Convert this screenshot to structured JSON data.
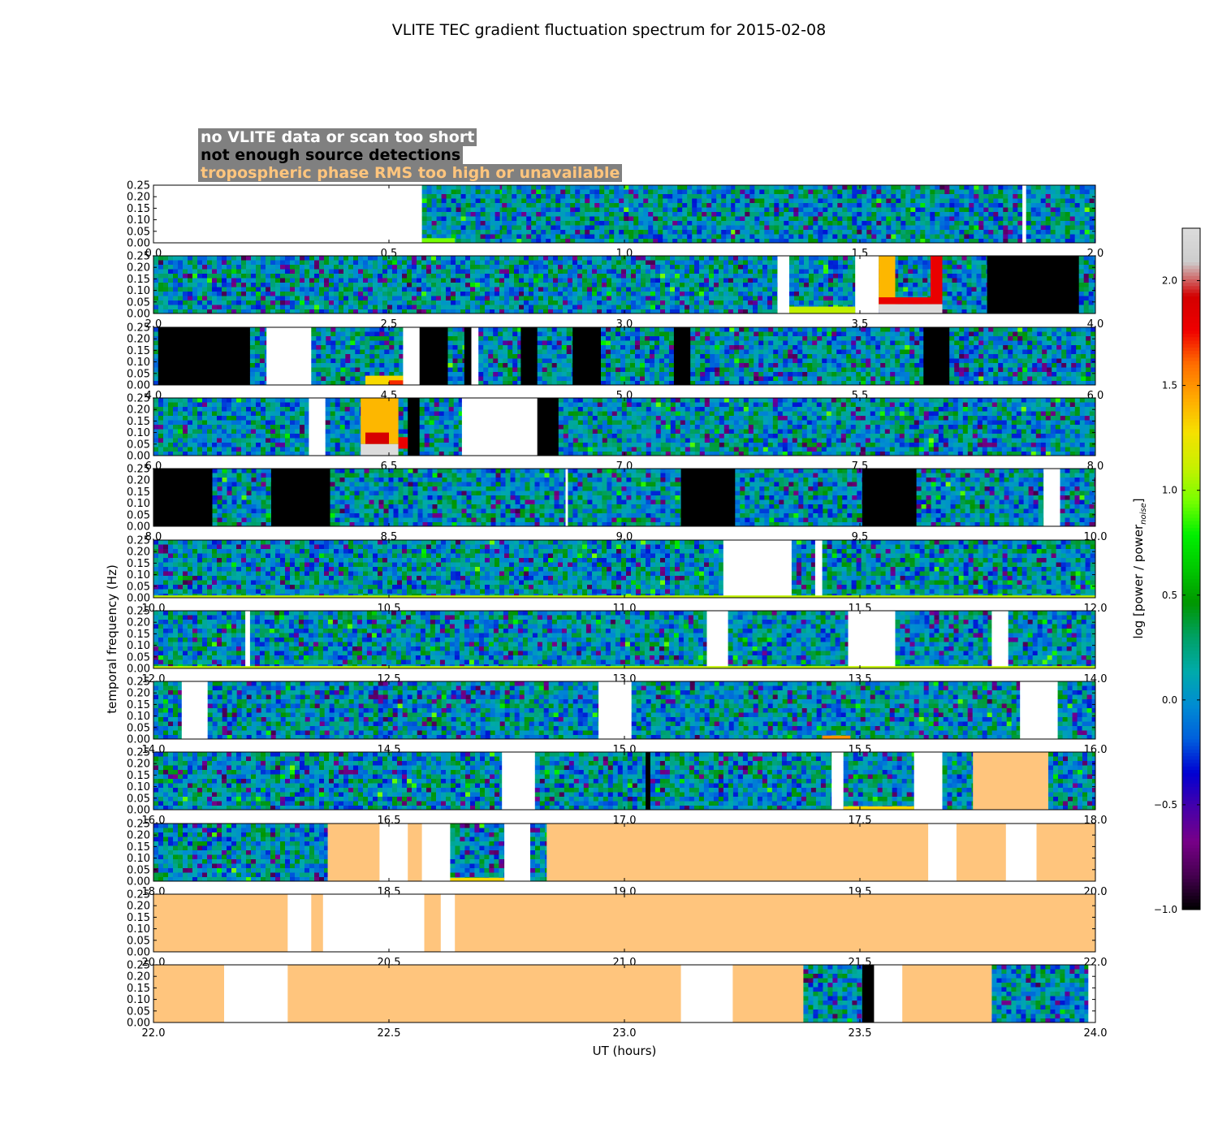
{
  "chart_data": {
    "type": "heatmap",
    "title": "VLITE TEC gradient fluctuation spectrum for 2015-02-08",
    "xlabel": "UT (hours)",
    "ylabel": "temporal frequency (Hz)",
    "ylim": [
      0,
      0.25
    ],
    "yticks": [
      "0.00",
      "0.05",
      "0.10",
      "0.15",
      "0.20",
      "0.25"
    ],
    "colorbar": {
      "label": "log [power / power",
      "label_subscript": "noise",
      "label_close": "]",
      "range": [
        -1.0,
        2.25
      ],
      "ticks": [
        "−1.0",
        "−0.5",
        "0.0",
        "0.5",
        "1.0",
        "1.5",
        "2.0"
      ],
      "tick_values": [
        -1.0,
        -0.5,
        0.0,
        0.5,
        1.0,
        1.5,
        2.0
      ],
      "colormap": "nipy_spectral"
    },
    "legend": {
      "placement": "top-left",
      "entries": [
        {
          "label": "no VLITE data or scan too short",
          "color": "#ffffff"
        },
        {
          "label": "not enough source detections",
          "color": "#000000"
        },
        {
          "label": "tropospheric phase RMS too high or unavailable",
          "color": "#ffc57d"
        }
      ]
    },
    "panels": [
      {
        "range": [
          0,
          2
        ],
        "ticks": [
          "0.0",
          "0.5",
          "1.0",
          "1.5",
          "2.0"
        ],
        "segments": [
          [
            0,
            0.57,
            "nodata"
          ],
          [
            0.57,
            0.74,
            "data"
          ],
          [
            0.74,
            1.235,
            "data"
          ],
          [
            1.235,
            1.845,
            "data"
          ],
          [
            1.845,
            1.853,
            "nodata"
          ],
          [
            1.853,
            2.0,
            "data"
          ]
        ]
      },
      {
        "range": [
          2,
          4
        ],
        "ticks": [
          "2.0",
          "2.5",
          "3.0",
          "3.5",
          "4.0"
        ],
        "segments": [
          [
            2.0,
            3.325,
            "data"
          ],
          [
            3.325,
            3.35,
            "nodata"
          ],
          [
            3.35,
            3.49,
            "data"
          ],
          [
            3.49,
            3.54,
            "nodata"
          ],
          [
            3.54,
            3.675,
            "data"
          ],
          [
            3.675,
            3.77,
            "data"
          ],
          [
            3.77,
            3.965,
            "nodet"
          ],
          [
            3.965,
            4.0,
            "data"
          ]
        ]
      },
      {
        "range": [
          4,
          6
        ],
        "ticks": [
          "4.0",
          "4.5",
          "5.0",
          "5.5",
          "6.0"
        ],
        "segments": [
          [
            4.0,
            4.01,
            "data"
          ],
          [
            4.01,
            4.205,
            "nodet"
          ],
          [
            4.205,
            4.24,
            "data"
          ],
          [
            4.24,
            4.335,
            "nodata"
          ],
          [
            4.335,
            4.53,
            "data"
          ],
          [
            4.53,
            4.565,
            "nodata"
          ],
          [
            4.565,
            4.625,
            "nodet"
          ],
          [
            4.625,
            4.66,
            "data"
          ],
          [
            4.66,
            4.675,
            "nodet"
          ],
          [
            4.675,
            4.69,
            "nodata"
          ],
          [
            4.69,
            4.78,
            "data"
          ],
          [
            4.78,
            4.815,
            "nodet"
          ],
          [
            4.815,
            4.89,
            "data"
          ],
          [
            4.89,
            4.95,
            "nodet"
          ],
          [
            4.95,
            5.105,
            "data"
          ],
          [
            5.105,
            5.14,
            "nodet"
          ],
          [
            5.14,
            5.635,
            "data"
          ],
          [
            5.635,
            5.69,
            "nodet"
          ],
          [
            5.69,
            6.0,
            "data"
          ]
        ]
      },
      {
        "range": [
          6,
          8
        ],
        "ticks": [
          "6.0",
          "6.5",
          "7.0",
          "7.5",
          "8.0"
        ],
        "segments": [
          [
            6.0,
            6.33,
            "data"
          ],
          [
            6.33,
            6.365,
            "nodata"
          ],
          [
            6.365,
            6.54,
            "data"
          ],
          [
            6.54,
            6.565,
            "nodet"
          ],
          [
            6.565,
            6.655,
            "data"
          ],
          [
            6.655,
            6.815,
            "nodata"
          ],
          [
            6.815,
            6.86,
            "nodet"
          ],
          [
            6.86,
            8.0,
            "data"
          ]
        ]
      },
      {
        "range": [
          8,
          10
        ],
        "ticks": [
          "8.0",
          "8.5",
          "9.0",
          "9.5",
          "10.0"
        ],
        "segments": [
          [
            8.0,
            8.125,
            "nodet"
          ],
          [
            8.125,
            8.25,
            "data"
          ],
          [
            8.25,
            8.375,
            "nodet"
          ],
          [
            8.375,
            8.875,
            "data"
          ],
          [
            8.875,
            8.88,
            "nodata"
          ],
          [
            8.88,
            9.12,
            "data"
          ],
          [
            9.12,
            9.235,
            "nodet"
          ],
          [
            9.235,
            9.505,
            "data"
          ],
          [
            9.505,
            9.62,
            "nodet"
          ],
          [
            9.62,
            9.89,
            "data"
          ],
          [
            9.89,
            9.925,
            "nodata"
          ],
          [
            9.925,
            10.0,
            "data"
          ]
        ]
      },
      {
        "range": [
          10,
          12
        ],
        "ticks": [
          "10.0",
          "10.5",
          "11.0",
          "11.5",
          "12.0"
        ],
        "segments": [
          [
            10.0,
            11.21,
            "data"
          ],
          [
            11.21,
            11.355,
            "nodata"
          ],
          [
            11.355,
            11.405,
            "data"
          ],
          [
            11.405,
            11.42,
            "nodata"
          ],
          [
            11.42,
            12.0,
            "data"
          ]
        ]
      },
      {
        "range": [
          12,
          14
        ],
        "ticks": [
          "12.0",
          "12.5",
          "13.0",
          "13.5",
          "14.0"
        ],
        "segments": [
          [
            12.0,
            12.195,
            "data"
          ],
          [
            12.195,
            12.205,
            "nodata"
          ],
          [
            12.205,
            13.175,
            "data"
          ],
          [
            13.175,
            13.22,
            "nodata"
          ],
          [
            13.22,
            13.475,
            "data"
          ],
          [
            13.475,
            13.575,
            "nodata"
          ],
          [
            13.575,
            13.78,
            "data"
          ],
          [
            13.78,
            13.815,
            "nodata"
          ],
          [
            13.815,
            14.0,
            "data"
          ]
        ]
      },
      {
        "range": [
          14,
          16
        ],
        "ticks": [
          "14.0",
          "14.5",
          "15.0",
          "15.5",
          "16.0"
        ],
        "segments": [
          [
            14.0,
            14.06,
            "data"
          ],
          [
            14.06,
            14.115,
            "nodata"
          ],
          [
            14.115,
            14.945,
            "data"
          ],
          [
            14.945,
            15.015,
            "nodata"
          ],
          [
            15.015,
            15.84,
            "data"
          ],
          [
            15.84,
            15.92,
            "nodata"
          ],
          [
            15.92,
            16.0,
            "data"
          ]
        ]
      },
      {
        "range": [
          16,
          18
        ],
        "ticks": [
          "16.0",
          "16.5",
          "17.0",
          "17.5",
          "18.0"
        ],
        "segments": [
          [
            16.0,
            16.74,
            "data"
          ],
          [
            16.74,
            16.81,
            "nodata"
          ],
          [
            16.81,
            17.045,
            "data"
          ],
          [
            17.045,
            17.055,
            "nodet"
          ],
          [
            17.055,
            17.44,
            "data"
          ],
          [
            17.44,
            17.465,
            "nodata"
          ],
          [
            17.465,
            17.615,
            "data"
          ],
          [
            17.615,
            17.675,
            "nodata"
          ],
          [
            17.675,
            17.74,
            "data"
          ],
          [
            17.74,
            17.9,
            "tropo"
          ],
          [
            17.9,
            18.0,
            "data"
          ]
        ]
      },
      {
        "range": [
          18,
          20
        ],
        "ticks": [
          "18.0",
          "18.5",
          "19.0",
          "19.5",
          "20.0"
        ],
        "segments": [
          [
            18.0,
            18.37,
            "data"
          ],
          [
            18.37,
            18.48,
            "tropo"
          ],
          [
            18.48,
            18.54,
            "nodata"
          ],
          [
            18.54,
            18.57,
            "tropo"
          ],
          [
            18.57,
            18.63,
            "nodata"
          ],
          [
            18.63,
            18.745,
            "data"
          ],
          [
            18.745,
            18.8,
            "nodata"
          ],
          [
            18.8,
            18.835,
            "data"
          ],
          [
            18.835,
            19.645,
            "tropo"
          ],
          [
            19.645,
            19.705,
            "nodata"
          ],
          [
            19.705,
            19.81,
            "tropo"
          ],
          [
            19.81,
            19.875,
            "nodata"
          ],
          [
            19.875,
            20.0,
            "tropo"
          ]
        ]
      },
      {
        "range": [
          20,
          22
        ],
        "ticks": [
          "20.0",
          "20.5",
          "21.0",
          "21.5",
          "22.0"
        ],
        "segments": [
          [
            20.0,
            20.285,
            "tropo"
          ],
          [
            20.285,
            20.335,
            "nodata"
          ],
          [
            20.335,
            20.36,
            "tropo"
          ],
          [
            20.36,
            20.575,
            "nodata"
          ],
          [
            20.575,
            20.61,
            "tropo"
          ],
          [
            20.61,
            20.64,
            "nodata"
          ],
          [
            20.64,
            22.0,
            "tropo"
          ]
        ]
      },
      {
        "range": [
          22,
          24
        ],
        "ticks": [
          "22.0",
          "22.5",
          "23.0",
          "23.5",
          "24.0"
        ],
        "segments": [
          [
            22.0,
            22.15,
            "tropo"
          ],
          [
            22.15,
            22.285,
            "nodata"
          ],
          [
            22.285,
            23.12,
            "tropo"
          ],
          [
            23.12,
            23.23,
            "nodata"
          ],
          [
            23.23,
            23.38,
            "tropo"
          ],
          [
            23.38,
            23.505,
            "data"
          ],
          [
            23.505,
            23.53,
            "nodet"
          ],
          [
            23.53,
            23.59,
            "nodata"
          ],
          [
            23.59,
            23.78,
            "tropo"
          ],
          [
            23.78,
            23.985,
            "data"
          ],
          [
            23.985,
            24.0,
            "nodata"
          ]
        ]
      }
    ],
    "hot_features": [
      [
        0.57,
        0.64,
        0.0,
        0.02,
        0.95
      ],
      [
        3.35,
        3.49,
        0.0,
        0.03,
        1.1
      ],
      [
        3.54,
        3.575,
        0.02,
        0.25,
        1.4
      ],
      [
        3.54,
        3.675,
        0.04,
        0.07,
        1.8
      ],
      [
        3.54,
        3.675,
        0.0,
        0.04,
        2.25
      ],
      [
        3.65,
        3.675,
        0.05,
        0.25,
        1.8
      ],
      [
        4.45,
        4.53,
        0.0,
        0.04,
        1.3
      ],
      [
        4.5,
        4.53,
        0.0,
        0.02,
        1.7
      ],
      [
        6.44,
        6.52,
        0.05,
        0.25,
        1.4
      ],
      [
        6.45,
        6.5,
        0.05,
        0.1,
        1.9
      ],
      [
        6.44,
        6.52,
        0.0,
        0.05,
        2.25
      ],
      [
        6.52,
        6.54,
        0.03,
        0.08,
        1.8
      ],
      [
        10.0,
        12.0,
        0.0,
        0.01,
        1.1
      ],
      [
        12.0,
        14.0,
        0.0,
        0.01,
        1.1
      ],
      [
        15.42,
        15.48,
        0.0,
        0.015,
        1.5
      ],
      [
        17.465,
        17.615,
        0.0,
        0.015,
        1.3
      ],
      [
        18.63,
        18.745,
        0.0,
        0.015,
        1.3
      ]
    ]
  }
}
